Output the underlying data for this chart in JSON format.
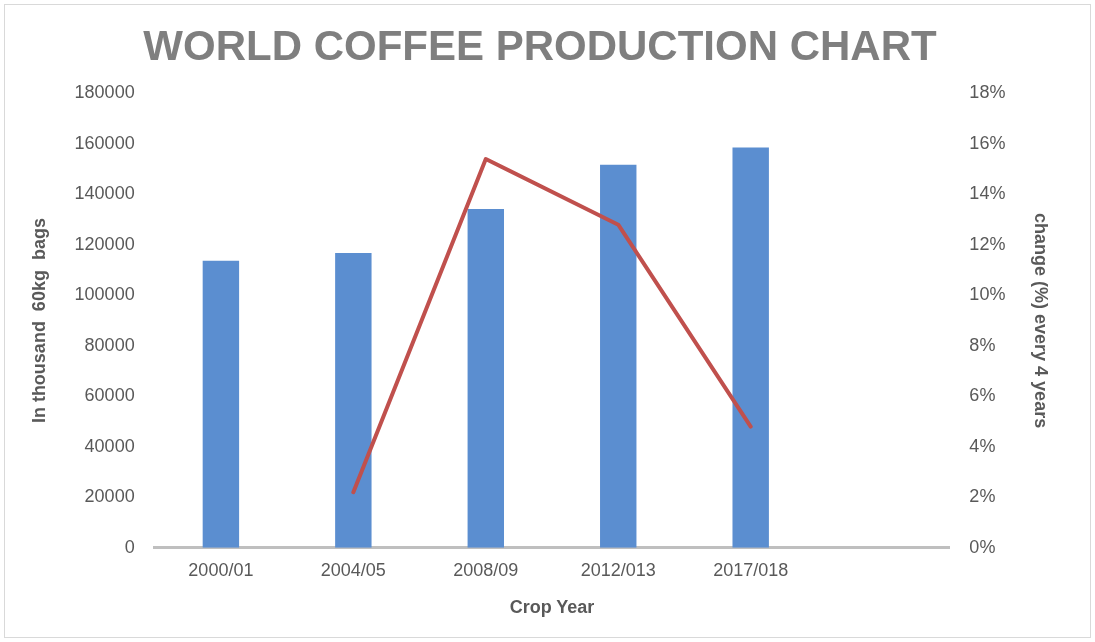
{
  "chart_data": {
    "type": "bar",
    "title": "WORLD COFFEE PRODUCTION CHART",
    "xlabel": "Crop Year",
    "ylabel": "In thousand  60kg  bags",
    "y2label": "change (%) every 4 years",
    "categories": [
      "2000/01",
      "2004/05",
      "2008/09",
      "2012/013",
      "2017/018",
      null
    ],
    "series": [
      {
        "color": "#5b8ed0",
        "values": [
          113700,
          116800,
          134200,
          151700,
          158600,
          null
        ]
      },
      {
        "type": "line",
        "axis": "y2",
        "color": "#c0504d",
        "values": [
          null,
          2.2,
          15.4,
          12.8,
          4.8,
          null
        ]
      }
    ],
    "ylim": [
      0,
      180000
    ],
    "yticks": [
      0,
      20000,
      40000,
      60000,
      80000,
      100000,
      120000,
      140000,
      160000,
      180000
    ],
    "y2lim": [
      0,
      18
    ],
    "y2ticks": [
      {
        "value": 0,
        "label": "0%"
      },
      {
        "value": 2,
        "label": "2%"
      },
      {
        "value": 4,
        "label": "4%"
      },
      {
        "value": 6,
        "label": "6%"
      },
      {
        "value": 8,
        "label": "8%"
      },
      {
        "value": 10,
        "label": "10%"
      },
      {
        "value": 12,
        "label": "12%"
      },
      {
        "value": 14,
        "label": "14%"
      },
      {
        "value": 16,
        "label": "16%"
      },
      {
        "value": 18,
        "label": "18%"
      }
    ],
    "grid": false,
    "legend": false,
    "marker": "none",
    "line_style": "solid"
  }
}
